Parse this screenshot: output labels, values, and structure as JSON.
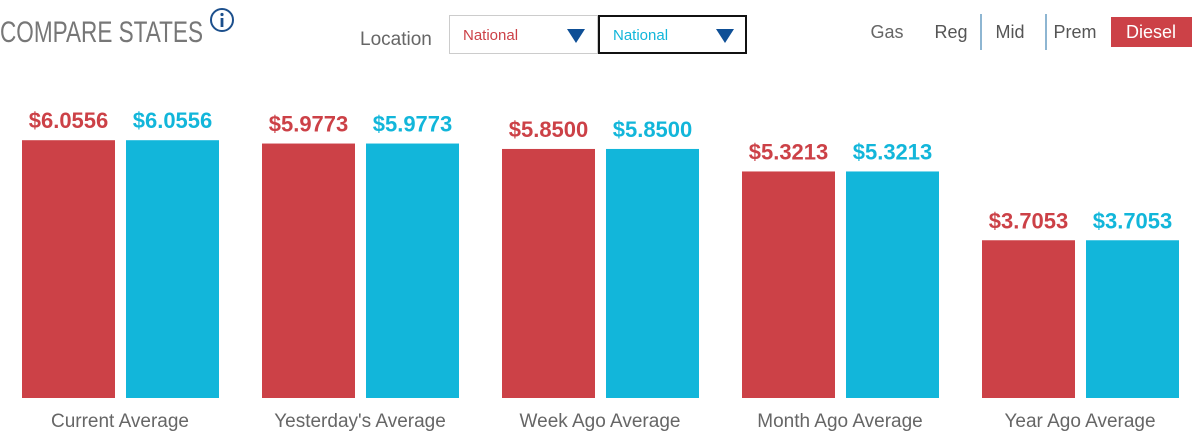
{
  "header": {
    "title": "COMPARE STATES",
    "location_label": "Location",
    "fuel_label": "Gas",
    "grades": [
      "Reg",
      "Mid",
      "Prem",
      "Diesel"
    ],
    "selected_grade": 3
  },
  "chart_data": {
    "type": "bar",
    "categories": [
      "Current Average",
      "Yesterday's Average",
      "Week Ago Average",
      "Month Ago Average",
      "Year Ago Average"
    ],
    "series": [
      {
        "name": "National",
        "color": "#cc4147",
        "values": [
          6.0556,
          5.9773,
          5.85,
          5.3213,
          3.7053
        ],
        "value_labels": [
          "$6.0556",
          "$5.9773",
          "$5.8500",
          "$5.3213",
          "$3.7053"
        ]
      },
      {
        "name": "National",
        "color": "#12b6da",
        "values": [
          6.0556,
          5.9773,
          5.85,
          5.3213,
          3.7053
        ],
        "value_labels": [
          "$6.0556",
          "$5.9773",
          "$5.8500",
          "$5.3213",
          "$3.7053"
        ]
      }
    ],
    "ylim": [
      0,
      7
    ],
    "grid": false
  }
}
